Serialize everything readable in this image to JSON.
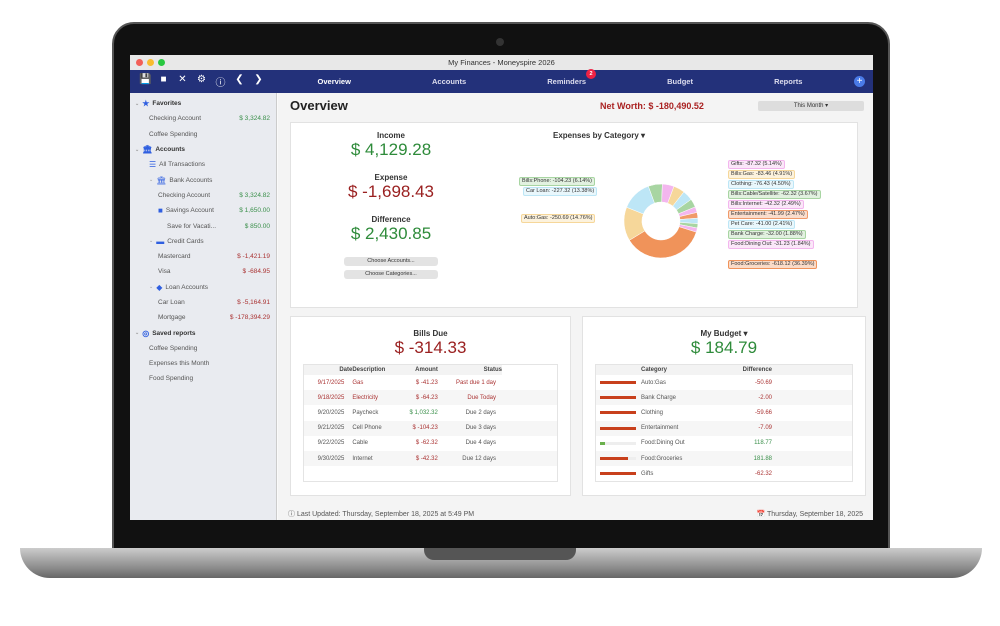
{
  "window": {
    "title": "My Finances - Moneyspire 2026"
  },
  "toolbar": {
    "icons": [
      "save-icon",
      "folder-icon",
      "tools-icon",
      "gear-icon",
      "help-icon",
      "back-icon",
      "forward-icon"
    ],
    "tabs": [
      {
        "label": "Overview",
        "active": true
      },
      {
        "label": "Accounts"
      },
      {
        "label": "Reminders",
        "badge": "2"
      },
      {
        "label": "Budget"
      },
      {
        "label": "Reports"
      }
    ]
  },
  "sidebar": {
    "items": [
      {
        "label": "Favorites",
        "header": true,
        "icon": "star-icon",
        "level": 0
      },
      {
        "label": "Checking Account",
        "amount": "$ 3,324.82",
        "level": 1
      },
      {
        "label": "Coffee Spending",
        "level": 1
      },
      {
        "label": "Accounts",
        "header": true,
        "icon": "bank-icon",
        "level": 0
      },
      {
        "label": "All Transactions",
        "icon": "list-icon",
        "level": 1
      },
      {
        "label": "Bank Accounts",
        "icon": "bank-icon",
        "level": 1
      },
      {
        "label": "Checking Account",
        "amount": "$ 3,324.82",
        "level": 2
      },
      {
        "label": "Savings Account",
        "amount": "$ 1,650.00",
        "icon": "folder-icon",
        "level": 2
      },
      {
        "label": "Save for Vacati...",
        "amount": "$ 850.00",
        "level": 3
      },
      {
        "label": "Credit Cards",
        "icon": "credit-card-icon",
        "level": 1
      },
      {
        "label": "Mastercard",
        "amount": "$ -1,421.19",
        "level": 2
      },
      {
        "label": "Visa",
        "amount": "$ -684.95",
        "level": 2
      },
      {
        "label": "Loan Accounts",
        "icon": "loan-icon",
        "level": 1
      },
      {
        "label": "Car Loan",
        "amount": "$ -5,164.91",
        "level": 2
      },
      {
        "label": "Mortgage",
        "amount": "$ -178,394.29",
        "level": 2
      },
      {
        "label": "Saved reports",
        "header": true,
        "icon": "report-icon",
        "level": 0
      },
      {
        "label": "Coffee Spending",
        "level": 1
      },
      {
        "label": "Expenses this Month",
        "level": 1
      },
      {
        "label": "Food Spending",
        "level": 1
      }
    ]
  },
  "main": {
    "title": "Overview",
    "net_worth": "Net Worth: $ -180,490.52",
    "period": "This Month ▾",
    "summary": {
      "income_label": "Income",
      "income": "$ 4,129.28",
      "expense_label": "Expense",
      "expense": "$ -1,698.43",
      "difference_label": "Difference",
      "difference": "$ 2,430.85",
      "choose_accounts": "Choose Accounts...",
      "choose_categories": "Choose Categories..."
    },
    "expenses": {
      "title": "Expenses by Category ▾",
      "slices": [
        {
          "label": "Bills:Phone: -104.23 (6.14%)",
          "pct": 6.14,
          "color": "#a8d5a2"
        },
        {
          "label": "Gifts: -87.32 (5.14%)",
          "pct": 5.14,
          "color": "#f3b6ee"
        },
        {
          "label": "Bills:Gas: -83.46 (4.91%)",
          "pct": 4.91,
          "color": "#f6d79a"
        },
        {
          "label": "Clothing: -76.43 (4.50%)",
          "pct": 4.5,
          "color": "#bde6f6"
        },
        {
          "label": "Bills:Cable/Satellite: -62.32 (3.67%)",
          "pct": 3.67,
          "color": "#a8d5a2"
        },
        {
          "label": "Bills:Internet: -42.32 (2.49%)",
          "pct": 2.49,
          "color": "#f3b6ee"
        },
        {
          "label": "Entertainment: -41.99 (2.47%)",
          "pct": 2.47,
          "color": "#f09a6a"
        },
        {
          "label": "Pet Care: -41.00 (2.41%)",
          "pct": 2.41,
          "color": "#bde6f6"
        },
        {
          "label": "Bank Charge: -32.00 (1.88%)",
          "pct": 1.88,
          "color": "#a8d5a2"
        },
        {
          "label": "Food:Dining Out: -31.23 (1.84%)",
          "pct": 1.84,
          "color": "#f3b6ee"
        },
        {
          "label": "Food:Groceries: -618.12 (36.39%)",
          "pct": 36.39,
          "color": "#f0935a"
        },
        {
          "label": "Auto:Gas: -250.69 (14.76%)",
          "pct": 14.76,
          "color": "#f6d79a"
        },
        {
          "label": "Car Loan: -227.32 (13.38%)",
          "pct": 13.38,
          "color": "#bde6f6"
        }
      ]
    },
    "bills": {
      "title": "Bills Due",
      "total": "$ -314.33",
      "columns": [
        "Date",
        "Description",
        "Amount",
        "Status"
      ],
      "rows": [
        {
          "date": "9/17/2025",
          "desc": "Gas",
          "amount": "$ -41.23",
          "status": "Past due 1 day",
          "overdue": true
        },
        {
          "date": "9/18/2025",
          "desc": "Electricity",
          "amount": "$ -64.23",
          "status": "Due Today",
          "overdue": true
        },
        {
          "date": "9/20/2025",
          "desc": "Paycheck",
          "amount": "$ 1,032.32",
          "status": "Due 2 days",
          "income": true
        },
        {
          "date": "9/21/2025",
          "desc": "Cell Phone",
          "amount": "$ -104.23",
          "status": "Due 3 days"
        },
        {
          "date": "9/22/2025",
          "desc": "Cable",
          "amount": "$ -62.32",
          "status": "Due 4 days"
        },
        {
          "date": "9/30/2025",
          "desc": "Internet",
          "amount": "$ -42.32",
          "status": "Due 12 days"
        }
      ]
    },
    "budget": {
      "title": "My Budget ▾",
      "total": "$ 184.79",
      "columns": [
        "",
        "Category",
        "Difference"
      ],
      "rows": [
        {
          "category": "Auto:Gas",
          "difference": "-50.69",
          "bar": 1.0,
          "over": true
        },
        {
          "category": "Bank Charge",
          "difference": "-2.00",
          "bar": 1.0,
          "over": true
        },
        {
          "category": "Clothing",
          "difference": "-59.66",
          "bar": 1.0,
          "over": true
        },
        {
          "category": "Entertainment",
          "difference": "-7.09",
          "bar": 1.0,
          "over": true
        },
        {
          "category": "Food:Dining Out",
          "difference": "118.77",
          "bar": 0.15,
          "over": false
        },
        {
          "category": "Food:Groceries",
          "difference": "181.88",
          "bar": 0.78,
          "over": true
        },
        {
          "category": "Gifts",
          "difference": "-62.32",
          "bar": 1.0,
          "over": true
        }
      ]
    },
    "footer": {
      "last_updated": "Last Updated: Thursday, September 18, 2025 at 5:49 PM",
      "date": "Thursday, September 18, 2025"
    }
  }
}
